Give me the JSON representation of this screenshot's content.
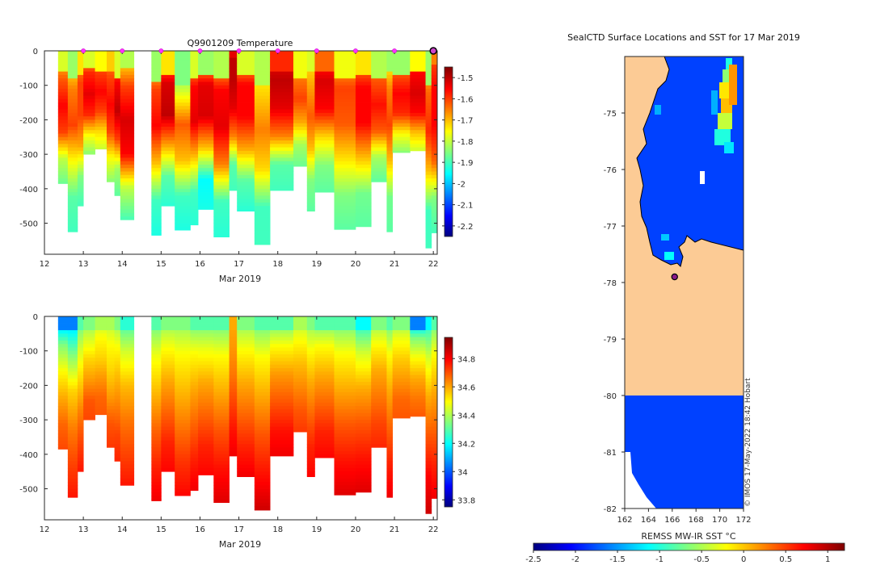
{
  "chart_data": [
    {
      "type": "heatmap",
      "id": "temperature",
      "title": "Q9901209  Temperature",
      "xlabel": "Mar 2019",
      "ylabel": "",
      "xlim": [
        12,
        22.1
      ],
      "ylim": [
        -590,
        0
      ],
      "xticks": [
        "12",
        "13",
        "14",
        "15",
        "16",
        "17",
        "18",
        "19",
        "20",
        "21",
        "22"
      ],
      "yticks": [
        "0",
        "-100",
        "-200",
        "-300",
        "-400",
        "-500"
      ],
      "colorbar": {
        "min": -2.25,
        "max": -1.45,
        "ticks": [
          "-1.5",
          "-1.6",
          "-1.7",
          "-1.8",
          "-1.9",
          "-2",
          "-2.1",
          "-2.2"
        ]
      },
      "marker_times": [
        13,
        14,
        15,
        16,
        17,
        18,
        19,
        20,
        21
      ],
      "last_marker_time": 22,
      "profiles": [
        {
          "t0": 12.35,
          "t1": 12.6,
          "bottom": -385,
          "mix": -60,
          "v": [
            -1.75,
            -1.62,
            -1.55,
            -1.6,
            -1.8,
            -1.87
          ]
        },
        {
          "t0": 12.6,
          "t1": 12.85,
          "bottom": -525,
          "mix": -80,
          "v": [
            -1.8,
            -1.65,
            -1.6,
            -1.75,
            -1.88,
            -1.9
          ]
        },
        {
          "t0": 12.85,
          "t1": 13.0,
          "bottom": -450,
          "mix": -70,
          "v": [
            -1.7,
            -1.6,
            -1.6,
            -1.68,
            -1.85,
            -1.9
          ]
        },
        {
          "t0": 13.0,
          "t1": 13.3,
          "bottom": -300,
          "mix": -50,
          "v": [
            -1.75,
            -1.58,
            -1.53,
            -1.58,
            -1.75,
            -1.85
          ]
        },
        {
          "t0": 13.3,
          "t1": 13.6,
          "bottom": -285,
          "mix": -60,
          "v": [
            -1.72,
            -1.6,
            -1.55,
            -1.6,
            -1.72,
            -1.8
          ]
        },
        {
          "t0": 13.6,
          "t1": 13.8,
          "bottom": -380,
          "mix": -60,
          "v": [
            -1.68,
            -1.6,
            -1.55,
            -1.6,
            -1.75,
            -1.85
          ]
        },
        {
          "t0": 13.8,
          "t1": 13.95,
          "bottom": -420,
          "mix": -80,
          "v": [
            -1.75,
            -1.55,
            -1.5,
            -1.6,
            -1.82,
            -1.88
          ]
        },
        {
          "t0": 13.95,
          "t1": 14.3,
          "bottom": -490,
          "mix": -50,
          "v": [
            -1.78,
            -1.6,
            -1.52,
            -1.55,
            -1.8,
            -1.9
          ]
        },
        {
          "t0": 14.75,
          "t1": 15.0,
          "bottom": -535,
          "mix": -90,
          "v": [
            -1.8,
            -1.6,
            -1.55,
            -1.7,
            -1.9,
            -1.93
          ]
        },
        {
          "t0": 15.0,
          "t1": 15.35,
          "bottom": -450,
          "mix": -70,
          "v": [
            -1.7,
            -1.52,
            -1.5,
            -1.68,
            -1.88,
            -1.92
          ]
        },
        {
          "t0": 15.35,
          "t1": 15.75,
          "bottom": -520,
          "mix": -100,
          "v": [
            -1.82,
            -1.8,
            -1.62,
            -1.7,
            -1.9,
            -1.93
          ]
        },
        {
          "t0": 15.75,
          "t1": 15.95,
          "bottom": -505,
          "mix": -80,
          "v": [
            -1.75,
            -1.55,
            -1.53,
            -1.7,
            -1.9,
            -1.92
          ]
        },
        {
          "t0": 15.95,
          "t1": 16.35,
          "bottom": -460,
          "mix": -70,
          "v": [
            -1.8,
            -1.53,
            -1.52,
            -1.7,
            -1.95,
            -1.93
          ]
        },
        {
          "t0": 16.35,
          "t1": 16.75,
          "bottom": -540,
          "mix": -80,
          "v": [
            -1.78,
            -1.55,
            -1.53,
            -1.65,
            -1.9,
            -1.92
          ]
        },
        {
          "t0": 16.75,
          "t1": 16.95,
          "bottom": -405,
          "mix": -20,
          "v": [
            -1.5,
            -1.5,
            -1.53,
            -1.65,
            -1.88,
            -1.9
          ]
        },
        {
          "t0": 16.95,
          "t1": 17.4,
          "bottom": -465,
          "mix": -70,
          "v": [
            -1.75,
            -1.55,
            -1.55,
            -1.68,
            -1.88,
            -1.92
          ]
        },
        {
          "t0": 17.4,
          "t1": 17.8,
          "bottom": -562,
          "mix": -100,
          "v": [
            -1.78,
            -1.72,
            -1.65,
            -1.72,
            -1.9,
            -1.9
          ]
        },
        {
          "t0": 17.8,
          "t1": 18.4,
          "bottom": -405,
          "mix": -60,
          "v": [
            -1.55,
            -1.5,
            -1.53,
            -1.65,
            -1.88,
            -1.9
          ]
        },
        {
          "t0": 18.4,
          "t1": 18.75,
          "bottom": -335,
          "mix": -80,
          "v": [
            -1.73,
            -1.65,
            -1.6,
            -1.68,
            -1.82,
            -1.87
          ]
        },
        {
          "t0": 18.75,
          "t1": 18.95,
          "bottom": -465,
          "mix": -60,
          "v": [
            -1.75,
            -1.68,
            -1.62,
            -1.7,
            -1.85,
            -1.88
          ]
        },
        {
          "t0": 18.95,
          "t1": 19.45,
          "bottom": -410,
          "mix": -60,
          "v": [
            -1.6,
            -1.52,
            -1.55,
            -1.72,
            -1.85,
            -1.88
          ]
        },
        {
          "t0": 19.45,
          "t1": 20.0,
          "bottom": -518,
          "mix": -80,
          "v": [
            -1.73,
            -1.6,
            -1.62,
            -1.73,
            -1.85,
            -1.88
          ]
        },
        {
          "t0": 20.0,
          "t1": 20.4,
          "bottom": -510,
          "mix": -70,
          "v": [
            -1.7,
            -1.55,
            -1.55,
            -1.7,
            -1.86,
            -1.88
          ]
        },
        {
          "t0": 20.4,
          "t1": 20.8,
          "bottom": -380,
          "mix": -80,
          "v": [
            -1.78,
            -1.62,
            -1.56,
            -1.62,
            -1.82,
            -1.88
          ]
        },
        {
          "t0": 20.8,
          "t1": 20.95,
          "bottom": -525,
          "mix": -60,
          "v": [
            -1.8,
            -1.65,
            -1.6,
            -1.7,
            -1.86,
            -1.88
          ]
        },
        {
          "t0": 20.95,
          "t1": 21.4,
          "bottom": -295,
          "mix": -70,
          "v": [
            -1.8,
            -1.62,
            -1.55,
            -1.58,
            -1.75,
            -1.85
          ]
        },
        {
          "t0": 21.4,
          "t1": 21.8,
          "bottom": -290,
          "mix": -60,
          "v": [
            -1.72,
            -1.55,
            -1.52,
            -1.55,
            -1.7,
            -1.8
          ]
        },
        {
          "t0": 21.8,
          "t1": 21.95,
          "bottom": -572,
          "mix": -100,
          "v": [
            -1.8,
            -1.63,
            -1.58,
            -1.7,
            -1.9,
            -1.9
          ]
        },
        {
          "t0": 21.95,
          "t1": 22.1,
          "bottom": -528,
          "mix": -40,
          "v": [
            -1.62,
            -1.55,
            -1.55,
            -1.63,
            -1.85,
            -1.9
          ]
        }
      ]
    },
    {
      "type": "heatmap",
      "id": "salinity",
      "title": "",
      "xlabel": "Mar 2019",
      "ylabel": "",
      "xlim": [
        12,
        22.1
      ],
      "ylim": [
        -590,
        0
      ],
      "xticks": [
        "12",
        "13",
        "14",
        "15",
        "16",
        "17",
        "18",
        "19",
        "20",
        "21",
        "22"
      ],
      "yticks": [
        "0",
        "-100",
        "-200",
        "-300",
        "-400",
        "-500"
      ],
      "colorbar": {
        "min": 33.75,
        "max": 34.95,
        "ticks": [
          "34.8",
          "34.6",
          "34.4",
          "34.2",
          "34",
          "33.8"
        ]
      },
      "profiles": [
        {
          "t0": 12.35,
          "t1": 12.6,
          "bottom": -385,
          "top_val": 34.05,
          "v": [
            34.05,
            34.35,
            34.5,
            34.6,
            34.68,
            34.72
          ]
        },
        {
          "t0": 12.6,
          "t1": 12.85,
          "bottom": -525,
          "top_val": 34.05,
          "v": [
            34.1,
            34.35,
            34.55,
            34.65,
            34.72,
            34.78
          ]
        },
        {
          "t0": 12.85,
          "t1": 13.0,
          "bottom": -450,
          "top_val": 34.3,
          "v": [
            34.3,
            34.45,
            34.55,
            34.65,
            34.72,
            34.78
          ]
        },
        {
          "t0": 13.0,
          "t1": 13.3,
          "bottom": -300,
          "top_val": 34.35,
          "v": [
            34.35,
            34.45,
            34.55,
            34.62,
            34.7,
            34.72
          ]
        },
        {
          "t0": 13.3,
          "t1": 13.6,
          "bottom": -285,
          "top_val": 34.4,
          "v": [
            34.4,
            34.5,
            34.55,
            34.62,
            34.68,
            34.7
          ]
        },
        {
          "t0": 13.6,
          "t1": 13.8,
          "bottom": -380,
          "top_val": 34.4,
          "v": [
            34.4,
            34.5,
            34.55,
            34.62,
            34.7,
            34.74
          ]
        },
        {
          "t0": 13.8,
          "t1": 13.95,
          "bottom": -420,
          "top_val": 34.35,
          "v": [
            34.35,
            34.5,
            34.58,
            34.65,
            34.72,
            34.76
          ]
        },
        {
          "t0": 13.95,
          "t1": 14.3,
          "bottom": -490,
          "top_val": 34.25,
          "v": [
            34.25,
            34.45,
            34.58,
            34.66,
            34.72,
            34.78
          ]
        },
        {
          "t0": 14.75,
          "t1": 15.0,
          "bottom": -535,
          "top_val": 34.3,
          "v": [
            34.3,
            34.48,
            34.58,
            34.68,
            34.76,
            34.82
          ]
        },
        {
          "t0": 15.0,
          "t1": 15.35,
          "bottom": -450,
          "top_val": 34.35,
          "v": [
            34.35,
            34.5,
            34.6,
            34.68,
            34.76,
            34.8
          ]
        },
        {
          "t0": 15.35,
          "t1": 15.75,
          "bottom": -520,
          "top_val": 34.35,
          "v": [
            34.35,
            34.5,
            34.58,
            34.66,
            34.74,
            34.8
          ]
        },
        {
          "t0": 15.75,
          "t1": 15.95,
          "bottom": -505,
          "top_val": 34.3,
          "v": [
            34.3,
            34.5,
            34.6,
            34.68,
            34.76,
            34.82
          ]
        },
        {
          "t0": 15.95,
          "t1": 16.35,
          "bottom": -460,
          "top_val": 34.3,
          "v": [
            34.3,
            34.48,
            34.6,
            34.68,
            34.76,
            34.8
          ]
        },
        {
          "t0": 16.35,
          "t1": 16.75,
          "bottom": -540,
          "top_val": 34.3,
          "v": [
            34.3,
            34.5,
            34.6,
            34.7,
            34.78,
            34.84
          ]
        },
        {
          "t0": 16.75,
          "t1": 16.95,
          "bottom": -405,
          "top_val": 34.6,
          "v": [
            34.6,
            34.62,
            34.66,
            34.72,
            34.78,
            34.82
          ]
        },
        {
          "t0": 16.95,
          "t1": 17.4,
          "bottom": -465,
          "top_val": 34.35,
          "v": [
            34.35,
            34.5,
            34.6,
            34.68,
            34.76,
            34.82
          ]
        },
        {
          "t0": 17.4,
          "t1": 17.8,
          "bottom": -562,
          "top_val": 34.3,
          "v": [
            34.3,
            34.5,
            34.6,
            34.7,
            34.78,
            34.86
          ]
        },
        {
          "t0": 17.8,
          "t1": 18.4,
          "bottom": -405,
          "top_val": 34.3,
          "v": [
            34.3,
            34.5,
            34.62,
            34.7,
            34.78,
            34.82
          ]
        },
        {
          "t0": 18.4,
          "t1": 18.75,
          "bottom": -335,
          "top_val": 34.4,
          "v": [
            34.4,
            34.5,
            34.58,
            34.64,
            34.7,
            34.74
          ]
        },
        {
          "t0": 18.75,
          "t1": 18.95,
          "bottom": -465,
          "top_val": 34.35,
          "v": [
            34.35,
            34.5,
            34.6,
            34.68,
            34.76,
            34.8
          ]
        },
        {
          "t0": 18.95,
          "t1": 19.45,
          "bottom": -410,
          "top_val": 34.3,
          "v": [
            34.3,
            34.5,
            34.6,
            34.68,
            34.76,
            34.8
          ]
        },
        {
          "t0": 19.45,
          "t1": 20.0,
          "bottom": -518,
          "top_val": 34.3,
          "v": [
            34.3,
            34.5,
            34.6,
            34.7,
            34.78,
            34.84
          ]
        },
        {
          "t0": 20.0,
          "t1": 20.4,
          "bottom": -510,
          "top_val": 34.2,
          "v": [
            34.2,
            34.45,
            34.6,
            34.7,
            34.78,
            34.84
          ]
        },
        {
          "t0": 20.4,
          "t1": 20.8,
          "bottom": -380,
          "top_val": 34.35,
          "v": [
            34.35,
            34.5,
            34.6,
            34.66,
            34.72,
            34.76
          ]
        },
        {
          "t0": 20.8,
          "t1": 20.95,
          "bottom": -525,
          "top_val": 34.3,
          "v": [
            34.3,
            34.5,
            34.6,
            34.68,
            34.76,
            34.82
          ]
        },
        {
          "t0": 20.95,
          "t1": 21.4,
          "bottom": -295,
          "top_val": 34.35,
          "v": [
            34.35,
            34.48,
            34.56,
            34.62,
            34.68,
            34.7
          ]
        },
        {
          "t0": 21.4,
          "t1": 21.8,
          "bottom": -290,
          "top_val": 34.05,
          "v": [
            34.05,
            34.35,
            34.5,
            34.6,
            34.66,
            34.7
          ]
        },
        {
          "t0": 21.8,
          "t1": 21.95,
          "bottom": -572,
          "top_val": 34.2,
          "v": [
            34.2,
            34.45,
            34.6,
            34.7,
            34.8,
            34.86
          ]
        },
        {
          "t0": 21.95,
          "t1": 22.1,
          "bottom": -528,
          "top_val": 34.3,
          "v": [
            34.3,
            34.5,
            34.6,
            34.68,
            34.76,
            34.82
          ]
        }
      ]
    },
    {
      "type": "heatmap",
      "id": "sst-map",
      "title": "SealCTD Surface Locations and SST for 17 Mar 2019",
      "xlabel": "",
      "colorbar_label": "REMSS MW-IR SST °C",
      "xlim": [
        162,
        172
      ],
      "ylim": [
        -82,
        -74
      ],
      "xticks": [
        "162",
        "164",
        "166",
        "168",
        "170",
        "172"
      ],
      "yticks": [
        "-75",
        "-76",
        "-77",
        "-78",
        "-79",
        "-80",
        "-81",
        "-82"
      ],
      "colorbar": {
        "min": -2.5,
        "max": 1.2,
        "ticks": [
          "-2.5",
          "-2",
          "-1.5",
          "-1",
          "-0.5",
          "0",
          "0.5",
          "1"
        ]
      },
      "ocean_sst": -1.8,
      "land_color": "#fccb95",
      "seal_position": {
        "lon": 166.2,
        "lat": -77.9
      },
      "credit": "© IMOS 17-May-2022 18:42 Hobart"
    }
  ]
}
